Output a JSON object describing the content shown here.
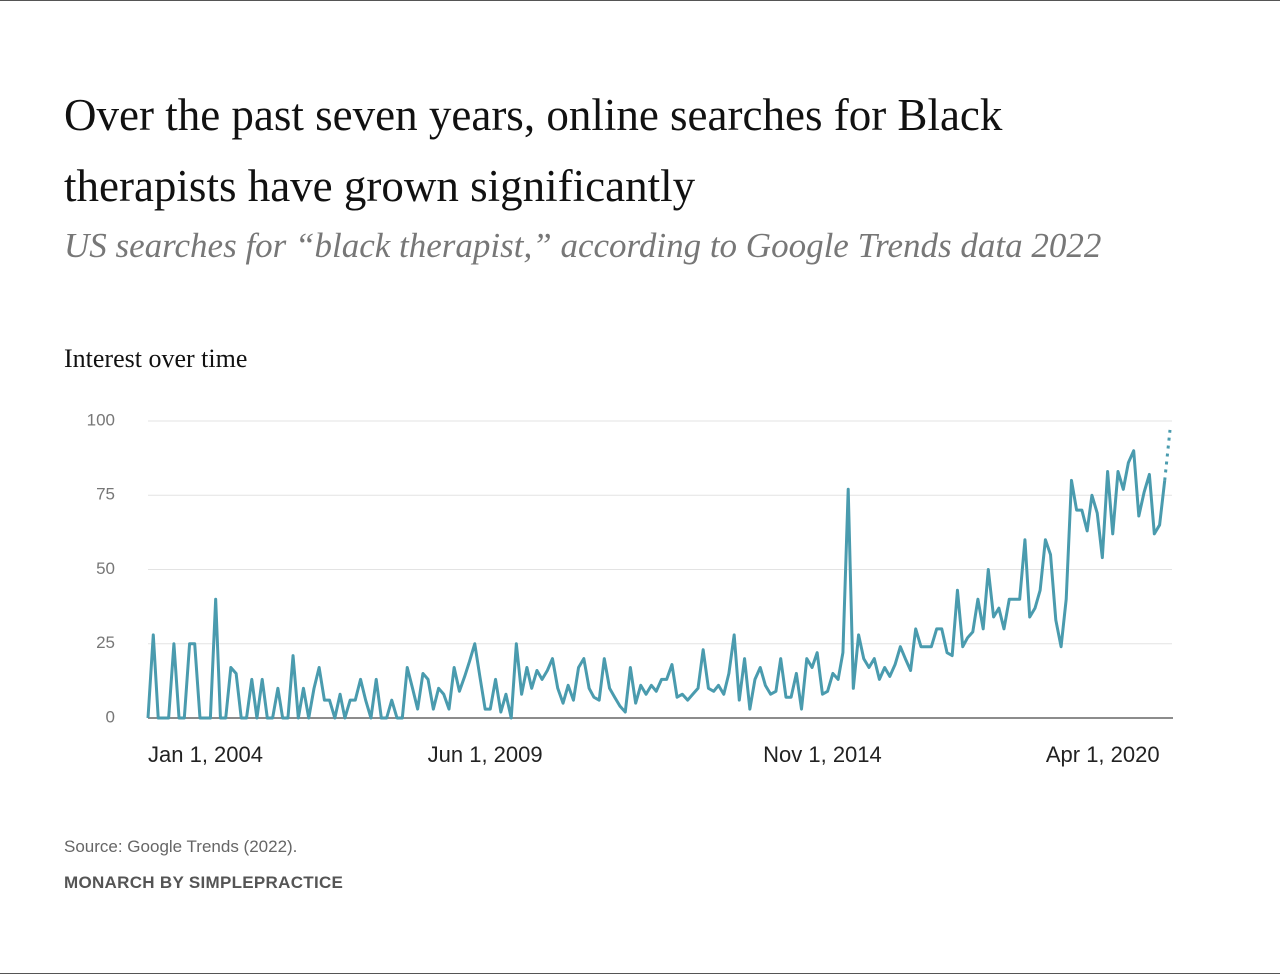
{
  "chart_data": {
    "type": "line",
    "title": "Over the past seven years, online searches for Black therapists have grown significantly",
    "subtitle": "US searches for “black therapist,” according to Google Trends data 2022",
    "y_axis_title": "Interest over time",
    "color": "#4a9bae",
    "dotted_last_segment": true,
    "grid": true,
    "ylim": [
      0,
      100
    ],
    "yticks": [
      0,
      25,
      50,
      75,
      100
    ],
    "xlim": [
      "2004-01-01",
      "2020-06-01"
    ],
    "xticks": [
      {
        "value": "2004-01-01",
        "label": "Jan 1, 2004"
      },
      {
        "value": "2009-06-01",
        "label": "Jun 1, 2009"
      },
      {
        "value": "2014-11-01",
        "label": "Nov 1, 2014"
      },
      {
        "value": "2020-04-01",
        "label": "Apr 1, 2020"
      }
    ],
    "x": [
      "2004-01-01",
      "2004-02-01",
      "2004-03-01",
      "2004-04-01",
      "2004-05-01",
      "2004-06-01",
      "2004-07-01",
      "2004-08-01",
      "2004-09-01",
      "2004-10-01",
      "2004-11-01",
      "2004-12-01",
      "2005-01-01",
      "2005-02-01",
      "2005-03-01",
      "2005-04-01",
      "2005-05-01",
      "2005-06-01",
      "2005-07-01",
      "2005-08-01",
      "2005-09-01",
      "2005-10-01",
      "2005-11-01",
      "2005-12-01",
      "2006-01-01",
      "2006-02-01",
      "2006-03-01",
      "2006-04-01",
      "2006-05-01",
      "2006-06-01",
      "2006-07-01",
      "2006-08-01",
      "2006-09-01",
      "2006-10-01",
      "2006-11-01",
      "2006-12-01",
      "2007-01-01",
      "2007-02-01",
      "2007-03-01",
      "2007-04-01",
      "2007-05-01",
      "2007-06-01",
      "2007-07-01",
      "2007-08-01",
      "2007-09-01",
      "2007-10-01",
      "2007-11-01",
      "2007-12-01",
      "2008-01-01",
      "2008-02-01",
      "2008-03-01",
      "2008-04-01",
      "2008-05-01",
      "2008-06-01",
      "2008-07-01",
      "2008-08-01",
      "2008-09-01",
      "2008-10-01",
      "2008-11-01",
      "2008-12-01",
      "2009-01-01",
      "2009-02-01",
      "2009-03-01",
      "2009-04-01",
      "2009-05-01",
      "2009-06-01",
      "2009-07-01",
      "2009-08-01",
      "2009-09-01",
      "2009-10-01",
      "2009-11-01",
      "2009-12-01",
      "2010-01-01",
      "2010-02-01",
      "2010-03-01",
      "2010-04-01",
      "2010-05-01",
      "2010-06-01",
      "2010-07-01",
      "2010-08-01",
      "2010-09-01",
      "2010-10-01",
      "2010-11-01",
      "2010-12-01",
      "2011-01-01",
      "2011-02-01",
      "2011-03-01",
      "2011-04-01",
      "2011-05-01",
      "2011-06-01",
      "2011-07-01",
      "2011-08-01",
      "2011-09-01",
      "2011-10-01",
      "2011-11-01",
      "2011-12-01",
      "2012-01-01",
      "2012-02-01",
      "2012-03-01",
      "2012-04-01",
      "2012-05-01",
      "2012-06-01",
      "2012-07-01",
      "2012-08-01",
      "2012-09-01",
      "2012-10-01",
      "2012-11-01",
      "2012-12-01",
      "2013-01-01",
      "2013-02-01",
      "2013-03-01",
      "2013-04-01",
      "2013-05-01",
      "2013-06-01",
      "2013-07-01",
      "2013-08-01",
      "2013-09-01",
      "2013-10-01",
      "2013-11-01",
      "2013-12-01",
      "2014-01-01",
      "2014-02-01",
      "2014-03-01",
      "2014-04-01",
      "2014-05-01",
      "2014-06-01",
      "2014-07-01",
      "2014-08-01",
      "2014-09-01",
      "2014-10-01",
      "2014-11-01",
      "2014-12-01",
      "2015-01-01",
      "2015-02-01",
      "2015-03-01",
      "2015-04-01",
      "2015-05-01",
      "2015-06-01",
      "2015-07-01",
      "2015-08-01",
      "2015-09-01",
      "2015-10-01",
      "2015-11-01",
      "2015-12-01",
      "2016-01-01",
      "2016-02-01",
      "2016-03-01",
      "2016-04-01",
      "2016-05-01",
      "2016-06-01",
      "2016-07-01",
      "2016-08-01",
      "2016-09-01",
      "2016-10-01",
      "2016-11-01",
      "2016-12-01",
      "2017-01-01",
      "2017-02-01",
      "2017-03-01",
      "2017-04-01",
      "2017-05-01",
      "2017-06-01",
      "2017-07-01",
      "2017-08-01",
      "2017-09-01",
      "2017-10-01",
      "2017-11-01",
      "2017-12-01",
      "2018-01-01",
      "2018-02-01",
      "2018-03-01",
      "2018-04-01",
      "2018-05-01",
      "2018-06-01",
      "2018-07-01",
      "2018-08-01",
      "2018-09-01",
      "2018-10-01",
      "2018-11-01",
      "2018-12-01",
      "2019-01-01",
      "2019-02-01",
      "2019-03-01",
      "2019-04-01",
      "2019-05-01",
      "2019-06-01",
      "2019-07-01",
      "2019-08-01",
      "2019-09-01",
      "2019-10-01",
      "2019-11-01",
      "2019-12-01",
      "2020-01-01",
      "2020-02-01",
      "2020-03-01",
      "2020-04-01",
      "2020-05-01",
      "2020-06-01"
    ],
    "values": [
      0,
      28,
      0,
      0,
      0,
      25,
      0,
      0,
      25,
      25,
      0,
      0,
      0,
      40,
      0,
      0,
      17,
      15,
      0,
      0,
      13,
      0,
      13,
      0,
      0,
      10,
      0,
      0,
      21,
      0,
      10,
      0,
      10,
      17,
      6,
      6,
      0,
      8,
      0,
      6,
      6,
      13,
      6,
      0,
      13,
      0,
      0,
      6,
      0,
      0,
      17,
      10,
      3,
      15,
      13,
      3,
      10,
      8,
      3,
      17,
      9,
      14,
      19,
      25,
      14,
      3,
      3,
      13,
      2,
      8,
      0,
      25,
      8,
      17,
      10,
      16,
      13,
      16,
      20,
      10,
      5,
      11,
      6,
      17,
      20,
      10,
      7,
      6,
      20,
      10,
      7,
      4,
      2,
      17,
      5,
      11,
      8,
      11,
      9,
      13,
      13,
      18,
      7,
      8,
      6,
      8,
      10,
      23,
      10,
      9,
      11,
      8,
      15,
      28,
      6,
      20,
      3,
      13,
      17,
      11,
      8,
      9,
      20,
      7,
      7,
      15,
      3,
      20,
      17,
      22,
      8,
      9,
      15,
      13,
      22,
      77,
      10,
      28,
      20,
      17,
      20,
      13,
      17,
      14,
      18,
      24,
      20,
      16,
      30,
      24,
      24,
      24,
      30,
      30,
      22,
      21,
      43,
      24,
      27,
      29,
      40,
      30,
      50,
      34,
      37,
      30,
      40,
      40,
      40,
      60,
      34,
      37,
      43,
      60,
      55,
      33,
      24,
      40,
      80,
      70,
      70,
      63,
      75,
      69,
      54,
      83,
      62,
      83,
      77,
      86,
      90,
      68,
      76,
      82,
      62,
      65,
      80,
      97
    ]
  },
  "footer": {
    "source": "Source: Google Trends (2022).",
    "credit": "MONARCH BY SIMPLEPRACTICE"
  }
}
